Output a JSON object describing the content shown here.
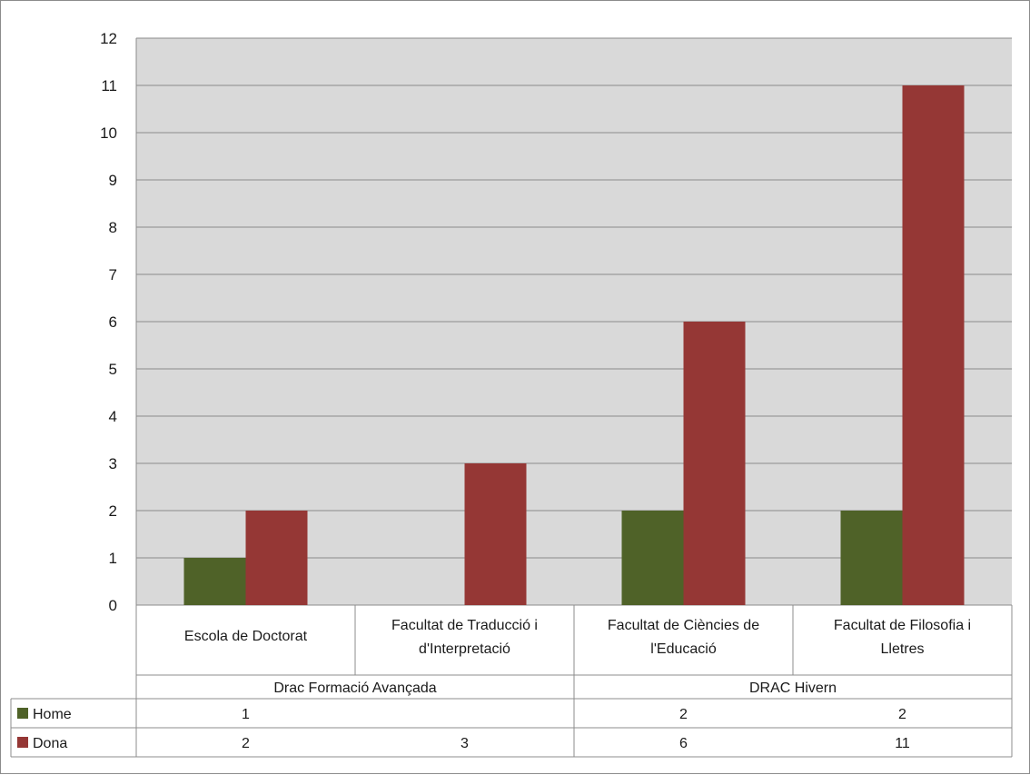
{
  "chart_data": {
    "type": "bar",
    "title": "",
    "xlabel": "",
    "ylabel": "",
    "ylim": [
      0,
      12
    ],
    "yticks": [
      "0",
      "1",
      "2",
      "3",
      "4",
      "5",
      "6",
      "7",
      "8",
      "9",
      "10",
      "11",
      "12"
    ],
    "grid": true,
    "groups": [
      {
        "label": "Drac Formació Avançada",
        "categories": [
          0,
          1
        ]
      },
      {
        "label": "DRAC Hivern",
        "categories": [
          2,
          3
        ]
      }
    ],
    "categories": [
      [
        "Escola de Doctorat"
      ],
      [
        "Facultat de Traducció i",
        "d'Interpretació"
      ],
      [
        "Facultat de Ciències de",
        "l'Educació"
      ],
      [
        "Facultat de Filosofia i",
        "Lletres"
      ]
    ],
    "series": [
      {
        "name": "Home",
        "color": "#4f6228",
        "values": [
          1,
          null,
          2,
          2
        ]
      },
      {
        "name": "Dona",
        "color": "#953735",
        "values": [
          2,
          3,
          6,
          11
        ]
      }
    ],
    "legend": "data-table",
    "colors": {
      "plot_background": "#d9d9d9",
      "gridline": "#8c8c8c",
      "border": "#8c8c8c"
    }
  }
}
